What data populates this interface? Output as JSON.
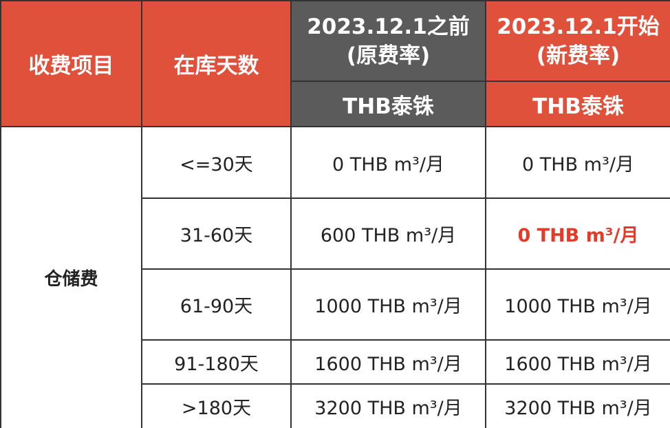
{
  "header": {
    "columns": [
      {
        "text": "收费项目"
      },
      {
        "text": "在库天数"
      },
      {
        "lines": [
          "2023.12.1之前",
          "(原费率)"
        ],
        "currency": "THB泰铢"
      },
      {
        "lines": [
          "2023.12.1开始",
          "(新费率)"
        ],
        "currency": "THB泰铢"
      }
    ]
  },
  "table": {
    "category": "仓储费",
    "rows": [
      [
        "<=30天",
        "0 THB m³/月",
        "0 THB m³/月"
      ],
      [
        "31-60天",
        "600 THB m³/月",
        "0 THB m³/月"
      ],
      [
        "61-90天",
        "1000 THB m³/月",
        "1000 THB m³/月"
      ],
      [
        "91-180天",
        "1600 THB m³/月",
        "1600 THB m³/月"
      ],
      [
        ">180天",
        "3200 THB m³/月",
        "3200 THB m³/月"
      ]
    ]
  }
}
